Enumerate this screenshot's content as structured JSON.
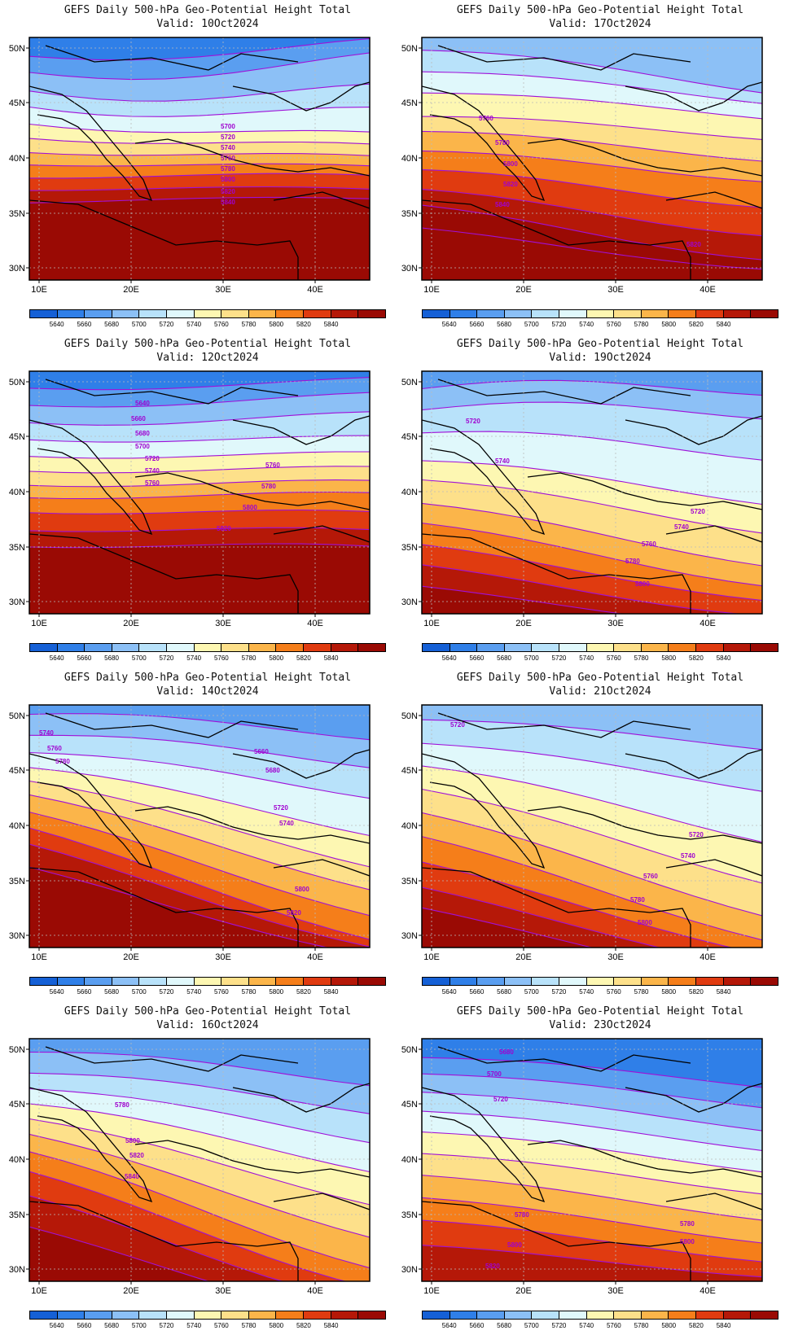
{
  "panels": [
    {
      "title": "GEFS Daily 500-hPa Geo-Potential Height Total",
      "valid": "Valid:  10Oct2024",
      "contour_labels": [
        "5700",
        "5720",
        "5740",
        "5760",
        "5780",
        "5800",
        "5820",
        "5840"
      ]
    },
    {
      "title": "GEFS Daily 500-hPa Geo-Potential Height Total",
      "valid": "Valid:  17Oct2024",
      "contour_labels": [
        "5760",
        "5780",
        "5800",
        "5820",
        "5840",
        "5820"
      ]
    },
    {
      "title": "GEFS Daily 500-hPa Geo-Potential Height Total",
      "valid": "Valid:  12Oct2024",
      "contour_labels": [
        "5640",
        "5660",
        "5680",
        "5700",
        "5720",
        "5740",
        "5760",
        "5760",
        "5780",
        "5800",
        "5820"
      ]
    },
    {
      "title": "GEFS Daily 500-hPa Geo-Potential Height Total",
      "valid": "Valid:  19Oct2024",
      "contour_labels": [
        "5720",
        "5740",
        "5720",
        "5740",
        "5760",
        "5780",
        "5800"
      ]
    },
    {
      "title": "GEFS Daily 500-hPa Geo-Potential Height Total",
      "valid": "Valid:  14Oct2024",
      "contour_labels": [
        "5740",
        "5760",
        "5780",
        "5660",
        "5680",
        "5720",
        "5740",
        "5800",
        "5820"
      ]
    },
    {
      "title": "GEFS Daily 500-hPa Geo-Potential Height Total",
      "valid": "Valid:  21Oct2024",
      "contour_labels": [
        "5720",
        "5720",
        "5740",
        "5760",
        "5780",
        "5800"
      ]
    },
    {
      "title": "GEFS Daily 500-hPa Geo-Potential Height Total",
      "valid": "Valid:  16Oct2024",
      "contour_labels": [
        "5780",
        "5800",
        "5820",
        "5840"
      ]
    },
    {
      "title": "GEFS Daily 500-hPa Geo-Potential Height Total",
      "valid": "Valid:  23Oct2024",
      "contour_labels": [
        "5680",
        "5700",
        "5720",
        "5780",
        "5780",
        "5800",
        "5800",
        "5820"
      ]
    }
  ],
  "axes": {
    "lon_ticks": [
      "10E",
      "20E",
      "30E",
      "40E"
    ],
    "lat_ticks": [
      "50N",
      "45N",
      "40N",
      "35N",
      "30N"
    ]
  },
  "colorbar": {
    "labels": [
      "5640",
      "5660",
      "5680",
      "5700",
      "5720",
      "5740",
      "5760",
      "5780",
      "5800",
      "5820",
      "5840"
    ],
    "colors": [
      "#1560d6",
      "#2f7fe8",
      "#5a9ef0",
      "#8cc0f6",
      "#b8e2fa",
      "#e0f8fb",
      "#fdf7b2",
      "#fde08a",
      "#fbb54a",
      "#f57e1a",
      "#e03b10",
      "#b51808",
      "#9a0a04"
    ]
  },
  "contour_color": "#a010d8"
}
